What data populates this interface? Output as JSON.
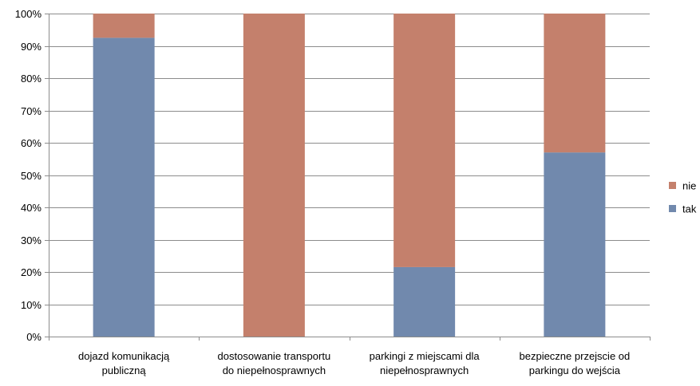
{
  "chart_data": {
    "type": "bar",
    "stacked": true,
    "percent_stacked": true,
    "categories": [
      [
        "dojazd komunikacją",
        "publiczną"
      ],
      [
        "dostosowanie transportu",
        "do niepełnosprawnych"
      ],
      [
        "parkingi z miejscami dla",
        "niepełnosprawnych"
      ],
      [
        "bezpieczne przejscie od",
        "parkingu do wejścia"
      ]
    ],
    "series": [
      {
        "name": "tak",
        "color": "#7189ad",
        "values": [
          92.5,
          0,
          21.5,
          57
        ]
      },
      {
        "name": "nie",
        "color": "#c4806c",
        "values": [
          7.5,
          100,
          78.5,
          43
        ]
      }
    ],
    "y_ticks": [
      "0%",
      "10%",
      "20%",
      "30%",
      "40%",
      "50%",
      "60%",
      "70%",
      "80%",
      "90%",
      "100%"
    ],
    "ylim": [
      0,
      100
    ],
    "grid": true,
    "legend_position": "right",
    "legend_order": [
      "nie",
      "tak"
    ]
  }
}
